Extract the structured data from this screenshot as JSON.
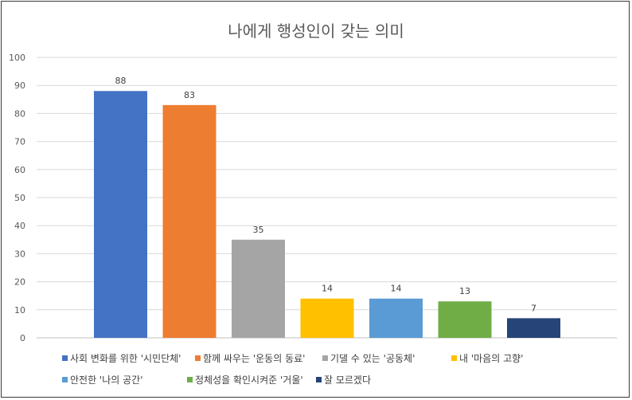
{
  "chart_data": {
    "type": "bar",
    "title": "나에게 행성인이 갖는 의미",
    "xlabel": "",
    "ylabel": "",
    "ylim": [
      0,
      100
    ],
    "yticks": [
      0,
      10,
      20,
      30,
      40,
      50,
      60,
      70,
      80,
      90,
      100
    ],
    "grid": true,
    "legend_position": "bottom",
    "series": [
      {
        "name": "사회 변화를 위한 '시민단체'",
        "value": 88,
        "color": "#4472C4"
      },
      {
        "name": "함께 싸우는 '운동의 동료'",
        "value": 83,
        "color": "#ED7D31"
      },
      {
        "name": "기댈 수 있는 '공동체'",
        "value": 35,
        "color": "#A5A5A5"
      },
      {
        "name": "내 '마음의 고향'",
        "value": 14,
        "color": "#FFC000"
      },
      {
        "name": "안전한 '나의 공간'",
        "value": 14,
        "color": "#5B9BD5"
      },
      {
        "name": "정체성을 확인시켜준 '거울'",
        "value": 13,
        "color": "#70AD47"
      },
      {
        "name": "잘 모르겠다",
        "value": 7,
        "color": "#264478"
      }
    ]
  }
}
